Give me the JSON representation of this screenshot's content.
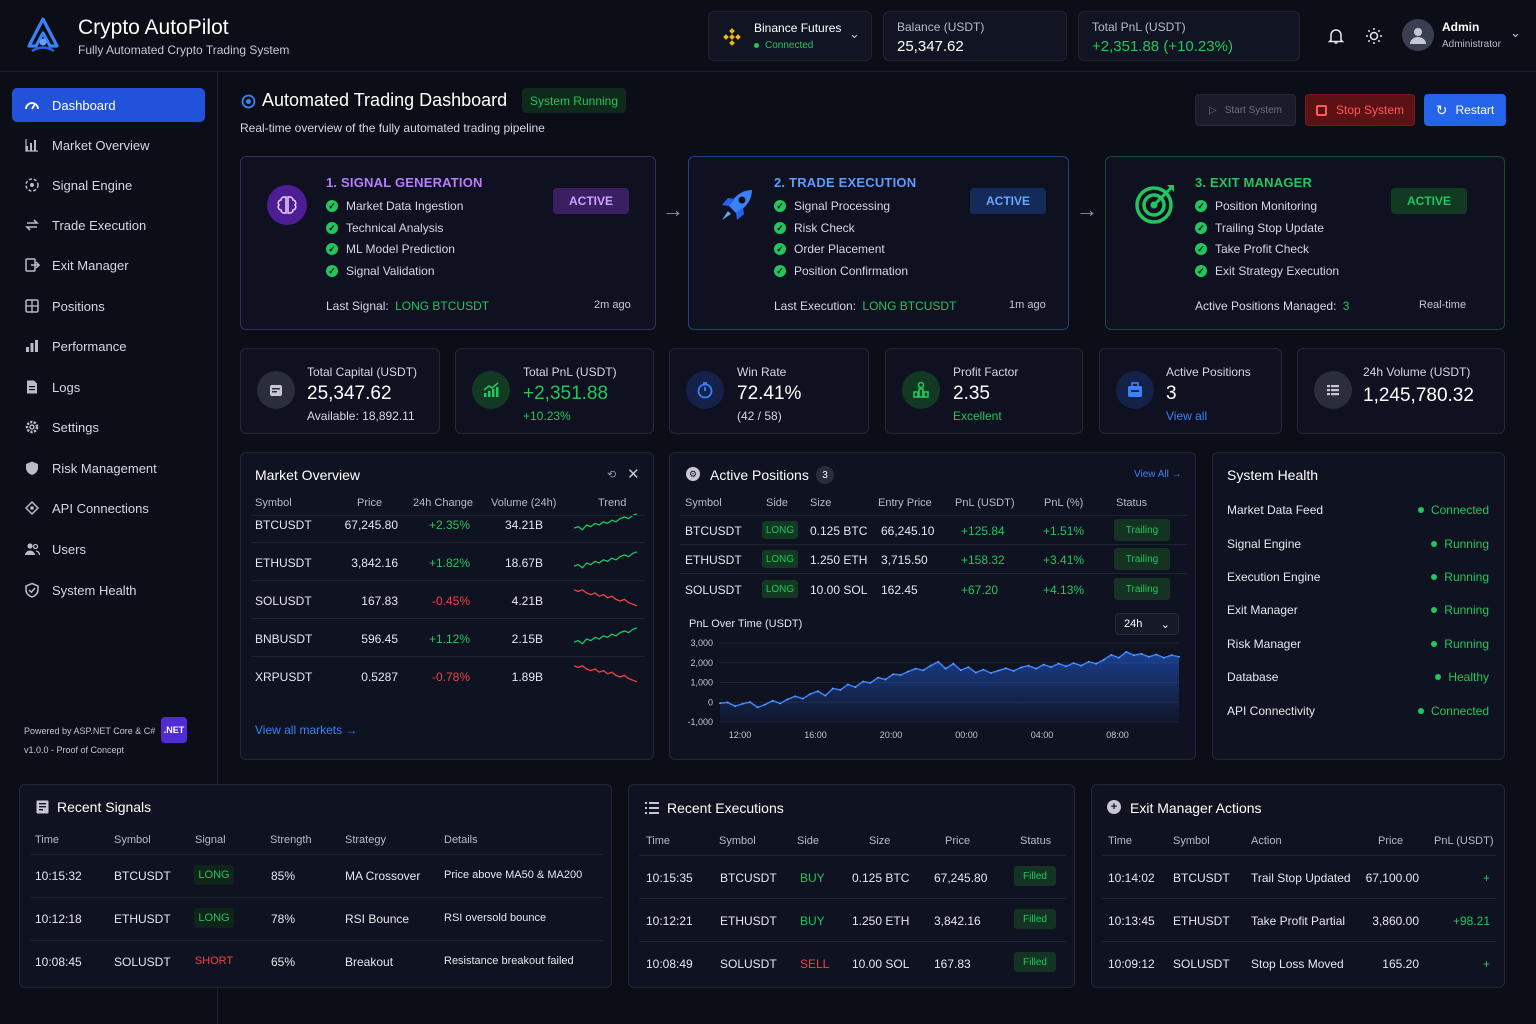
{
  "app": {
    "name": "Crypto AutoPilot",
    "subtitle": "Fully Automated Crypto Trading System"
  },
  "header": {
    "exchange": {
      "name": "Binance Futures",
      "status": "Connected"
    },
    "balance": {
      "label": "Balance (USDT)",
      "value": "25,347.62"
    },
    "pnl": {
      "label": "Total PnL (USDT)",
      "value": "+2,351.88 (+10.23%)"
    },
    "user": {
      "name": "Admin",
      "role": "Administrator"
    }
  },
  "sidebar": {
    "items": [
      {
        "label": "Dashboard",
        "icon": "gauge-icon"
      },
      {
        "label": "Market Overview",
        "icon": "chart-icon"
      },
      {
        "label": "Signal Engine",
        "icon": "signal-icon"
      },
      {
        "label": "Trade Execution",
        "icon": "exchange-icon"
      },
      {
        "label": "Exit Manager",
        "icon": "exit-icon"
      },
      {
        "label": "Positions",
        "icon": "grid-icon"
      },
      {
        "label": "Performance",
        "icon": "bars-icon"
      },
      {
        "label": "Logs",
        "icon": "file-icon"
      },
      {
        "label": "Settings",
        "icon": "gear-icon"
      },
      {
        "label": "Risk Management",
        "icon": "shield-icon"
      },
      {
        "label": "API Connections",
        "icon": "plug-icon"
      },
      {
        "label": "Users",
        "icon": "users-icon"
      },
      {
        "label": "System Health",
        "icon": "shield-check-icon"
      }
    ],
    "footer": {
      "powered": "Powered by ASP.NET Core & C#",
      "badge": ".NET",
      "version": "v1.0.0 - Proof of Concept"
    }
  },
  "page": {
    "title": "Automated Trading Dashboard",
    "status_badge": "System Running",
    "subtitle": "Real-time overview of the fully automated trading pipeline",
    "buttons": {
      "start": "Start System",
      "stop": "Stop System",
      "restart": "Restart"
    }
  },
  "pipeline": [
    {
      "title": "1. SIGNAL GENERATION",
      "badge": "ACTIVE",
      "steps": [
        "Market Data Ingestion",
        "Technical Analysis",
        "ML Model Prediction",
        "Signal Validation"
      ],
      "foot_label": "Last Signal:",
      "foot_value": "LONG BTCUSDT",
      "foot_right": "2m ago"
    },
    {
      "title": "2. TRADE EXECUTION",
      "badge": "ACTIVE",
      "steps": [
        "Signal Processing",
        "Risk Check",
        "Order Placement",
        "Position Confirmation"
      ],
      "foot_label": "Last Execution:",
      "foot_value": "LONG BTCUSDT",
      "foot_right": "1m ago"
    },
    {
      "title": "3. EXIT MANAGER",
      "badge": "ACTIVE",
      "steps": [
        "Position Monitoring",
        "Trailing Stop Update",
        "Take Profit Check",
        "Exit Strategy Execution"
      ],
      "foot_label": "Active Positions Managed:",
      "foot_value": "3",
      "foot_right": "Real-time"
    }
  ],
  "stats": [
    {
      "label": "Total Capital (USDT)",
      "value": "25,347.62",
      "sub": "Available: 18,892.11"
    },
    {
      "label": "Total PnL (USDT)",
      "value": "+2,351.88",
      "sub": "+10.23%"
    },
    {
      "label": "Win Rate",
      "value": "72.41%",
      "sub": "(42 / 58)"
    },
    {
      "label": "Profit Factor",
      "value": "2.35",
      "sub": "Excellent"
    },
    {
      "label": "Active Positions",
      "value": "3",
      "sub": "View all"
    },
    {
      "label": "24h Volume (USDT)",
      "value": "1,245,780.32",
      "sub": ""
    }
  ],
  "market": {
    "title": "Market Overview",
    "headers": [
      "Symbol",
      "Price",
      "24h Change",
      "Volume (24h)",
      "Trend"
    ],
    "rows": [
      {
        "symbol": "BTCUSDT",
        "price": "67,245.80",
        "change": "+2.35%",
        "volume": "34.21B",
        "up": true
      },
      {
        "symbol": "ETHUSDT",
        "price": "3,842.16",
        "change": "+1.82%",
        "volume": "18.67B",
        "up": true
      },
      {
        "symbol": "SOLUSDT",
        "price": "167.83",
        "change": "-0.45%",
        "volume": "4.21B",
        "up": false
      },
      {
        "symbol": "BNBUSDT",
        "price": "596.45",
        "change": "+1.12%",
        "volume": "2.15B",
        "up": true
      },
      {
        "symbol": "XRPUSDT",
        "price": "0.5287",
        "change": "-0.78%",
        "volume": "1.89B",
        "up": false
      }
    ],
    "link": "View all markets"
  },
  "positions": {
    "title": "Active Positions",
    "count": "3",
    "view_all": "View All",
    "headers": [
      "Symbol",
      "Side",
      "Size",
      "Entry Price",
      "PnL (USDT)",
      "PnL (%)",
      "Status"
    ],
    "rows": [
      {
        "symbol": "BTCUSDT",
        "side": "LONG",
        "size": "0.125 BTC",
        "entry": "66,245.10",
        "pnl": "+125.84",
        "pct": "+1.51%",
        "status": "Trailing"
      },
      {
        "symbol": "ETHUSDT",
        "side": "LONG",
        "size": "1.250 ETH",
        "entry": "3,715.50",
        "pnl": "+158.32",
        "pct": "+3.41%",
        "status": "Trailing"
      },
      {
        "symbol": "SOLUSDT",
        "side": "LONG",
        "size": "10.00 SOL",
        "entry": "162.45",
        "pnl": "+67.20",
        "pct": "+4.13%",
        "status": "Trailing"
      }
    ],
    "chart_title": "PnL Over Time (USDT)",
    "range": "24h"
  },
  "chart_data": {
    "type": "area",
    "title": "PnL Over Time (USDT)",
    "xlabel": "",
    "ylabel": "",
    "ylim": [
      -1000,
      3000
    ],
    "y_ticks": [
      "3,000",
      "2,000",
      "1,000",
      "0",
      "-1,000"
    ],
    "x_ticks": [
      "12:00",
      "16:00",
      "20:00",
      "00:00",
      "04:00",
      "08:00"
    ],
    "series": [
      {
        "values": [
          -50,
          -10,
          -200,
          -80,
          10,
          -260,
          -120,
          80,
          -60,
          150,
          300,
          180,
          420,
          560,
          330,
          700,
          620,
          900,
          760,
          1050,
          980,
          1250,
          1150,
          1420,
          1380,
          1550,
          1700,
          1620,
          1850,
          2050,
          1700,
          1950,
          1620,
          1780,
          1500,
          1650,
          1480,
          1600,
          1720,
          1580,
          1760,
          1850,
          1700,
          1900,
          1780,
          1950,
          1820,
          1980,
          1850,
          2050,
          1950,
          2150,
          2400,
          2250,
          2550,
          2380,
          2450,
          2300,
          2420,
          2250,
          2380,
          2300
        ]
      }
    ],
    "grid": true
  },
  "health": {
    "title": "System Health",
    "items": [
      {
        "name": "Market Data Feed",
        "status": "Connected"
      },
      {
        "name": "Signal Engine",
        "status": "Running"
      },
      {
        "name": "Execution Engine",
        "status": "Running"
      },
      {
        "name": "Exit Manager",
        "status": "Running"
      },
      {
        "name": "Risk Manager",
        "status": "Running"
      },
      {
        "name": "Database",
        "status": "Healthy"
      },
      {
        "name": "API Connectivity",
        "status": "Connected"
      }
    ]
  },
  "signals": {
    "title": "Recent Signals",
    "headers": [
      "Time",
      "Symbol",
      "Signal",
      "Strength",
      "Strategy",
      "Details"
    ],
    "rows": [
      {
        "time": "10:15:32",
        "symbol": "BTCUSDT",
        "signal": "LONG",
        "strength": "85%",
        "strategy": "MA Crossover",
        "details": "Price above MA50 & MA200"
      },
      {
        "time": "10:12:18",
        "symbol": "ETHUSDT",
        "signal": "LONG",
        "strength": "78%",
        "strategy": "RSI Bounce",
        "details": "RSI oversold bounce"
      },
      {
        "time": "10:08:45",
        "symbol": "SOLUSDT",
        "signal": "SHORT",
        "strength": "65%",
        "strategy": "Breakout",
        "details": "Resistance breakout failed"
      }
    ]
  },
  "executions": {
    "title": "Recent Executions",
    "headers": [
      "Time",
      "Symbol",
      "Side",
      "Size",
      "Price",
      "Status"
    ],
    "rows": [
      {
        "time": "10:15:35",
        "symbol": "BTCUSDT",
        "side": "BUY",
        "size": "0.125 BTC",
        "price": "67,245.80",
        "status": "Filled"
      },
      {
        "time": "10:12:21",
        "symbol": "ETHUSDT",
        "side": "BUY",
        "size": "1.250 ETH",
        "price": "3,842.16",
        "status": "Filled"
      },
      {
        "time": "10:08:49",
        "symbol": "SOLUSDT",
        "side": "SELL",
        "size": "10.00 SOL",
        "price": "167.83",
        "status": "Filled"
      }
    ]
  },
  "exits": {
    "title": "Exit Manager Actions",
    "headers": [
      "Time",
      "Symbol",
      "Action",
      "Price",
      "PnL (USDT)"
    ],
    "rows": [
      {
        "time": "10:14:02",
        "symbol": "BTCUSDT",
        "action": "Trail Stop Updated",
        "price": "67,100.00",
        "pnl": "+"
      },
      {
        "time": "10:13:45",
        "symbol": "ETHUSDT",
        "action": "Take Profit Partial",
        "price": "3,860.00",
        "pnl": "+98.21"
      },
      {
        "time": "10:09:12",
        "symbol": "SOLUSDT",
        "action": "Stop Loss Moved",
        "price": "165.20",
        "pnl": "+"
      }
    ]
  },
  "colors": {
    "accent": "#2152d9",
    "green": "#22c55e",
    "red": "#ef4444",
    "purple": "#a855f7",
    "blue": "#3b82f6",
    "bg": "#0b0d17"
  }
}
